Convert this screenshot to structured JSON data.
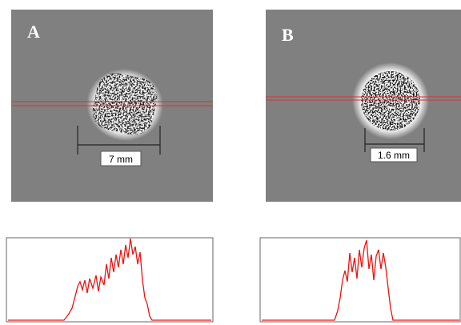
{
  "panels": [
    {
      "label": "A",
      "scale_label": "7 mm"
    },
    {
      "label": "B",
      "scale_label": "1.6 mm"
    }
  ]
}
